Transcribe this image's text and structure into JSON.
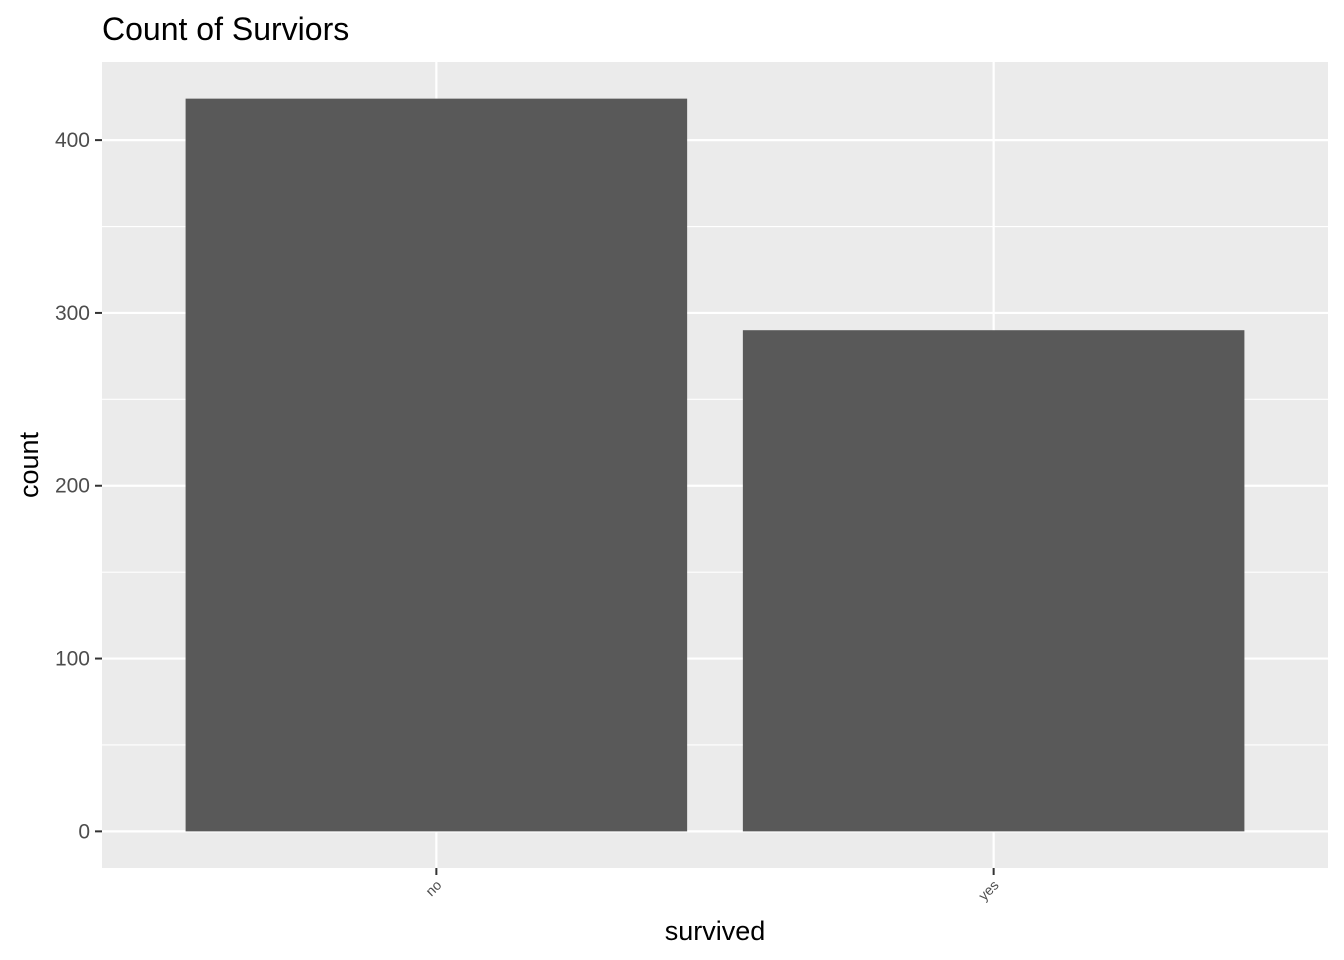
{
  "chart_data": {
    "type": "bar",
    "title": "Count of Surviors",
    "xlabel": "survived",
    "ylabel": "count",
    "categories": [
      "no",
      "yes"
    ],
    "values": [
      424,
      290
    ],
    "ylim": [
      -21.2,
      445.2
    ],
    "yticks": [
      0,
      100,
      200,
      300,
      400
    ],
    "grid": true,
    "colors": {
      "panel": "#ebebeb",
      "grid": "#ffffff",
      "bar": "#595959",
      "tick": "#333333"
    }
  }
}
